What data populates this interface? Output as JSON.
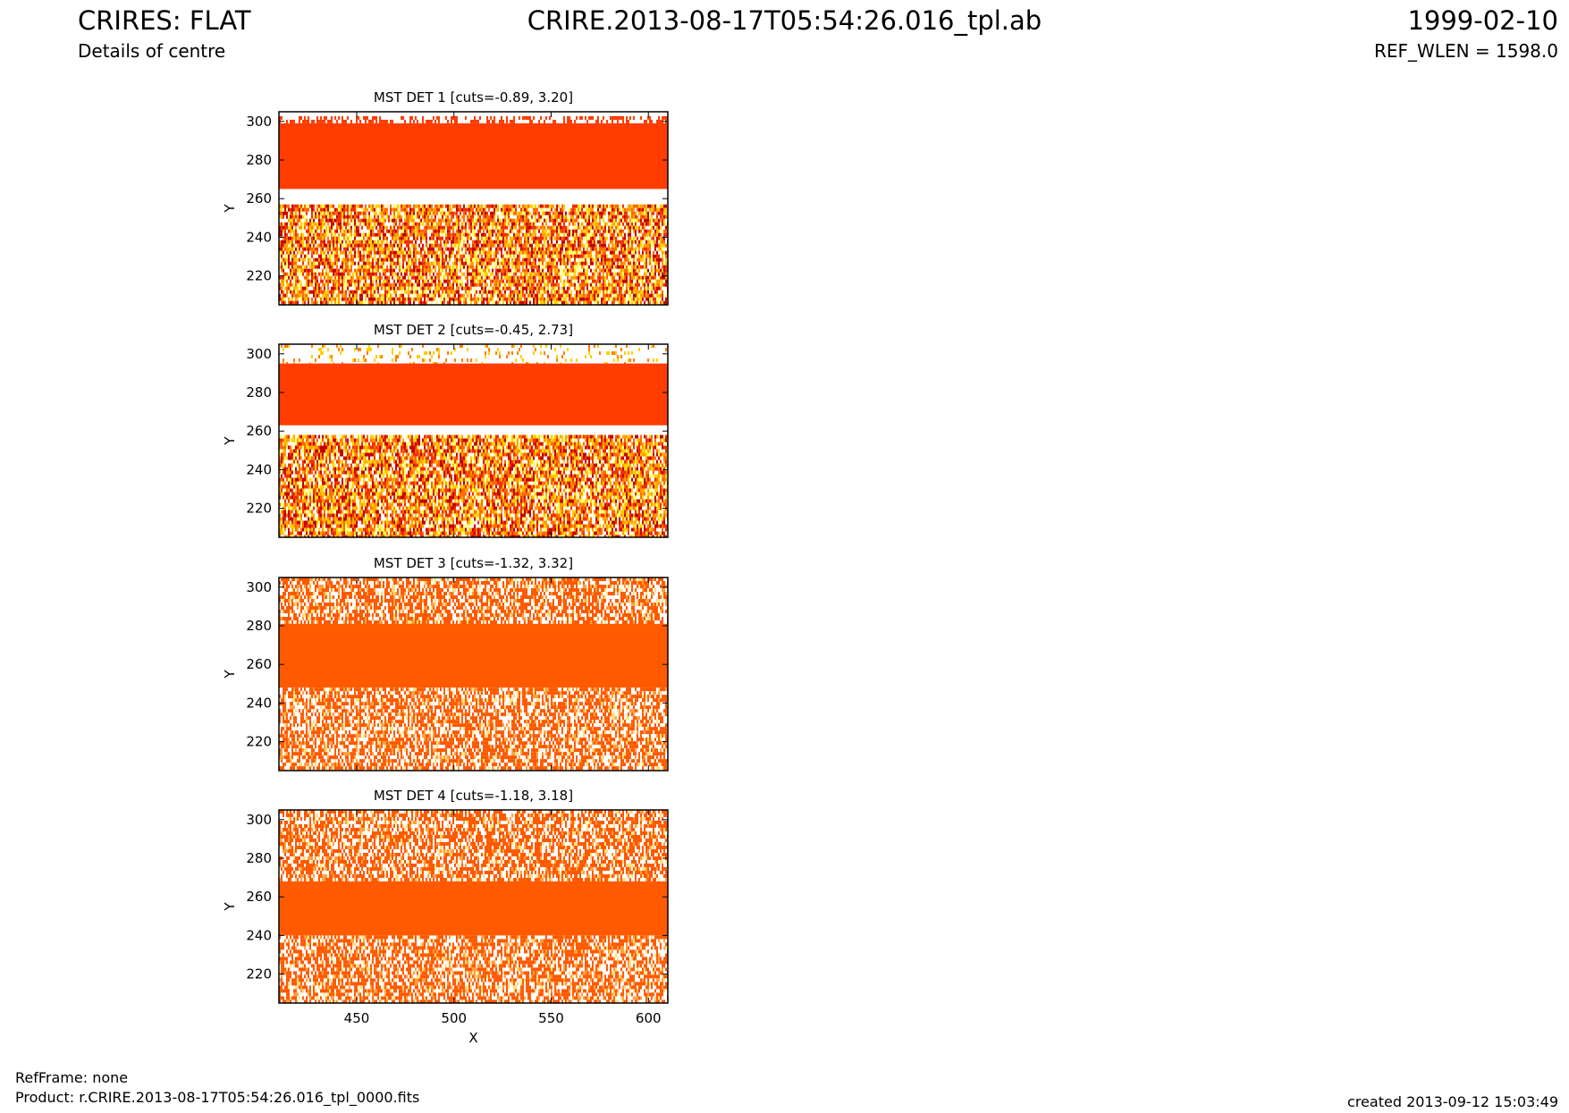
{
  "header": {
    "title": "CRIRES: FLAT",
    "subtitle": "Details of centre",
    "filename": "CRIRE.2013-08-17T05:54:26.016_tpl.ab",
    "date": "1999-02-10",
    "ref_wlen": "REF_WLEN = 1598.0"
  },
  "footer": {
    "refframe": "RefFrame: none",
    "product": "Product: r.CRIRE.2013-08-17T05:54:26.016_tpl_0000.fits",
    "created": "created 2013-09-12 15:03:49"
  },
  "colors": {
    "band_dark": "#ff3d00",
    "band_light": "#ff5a00",
    "noise": [
      "#ffffff",
      "#ffff80",
      "#ffe000",
      "#ffb000",
      "#ff8000",
      "#ff5000",
      "#e02000",
      "#c00000"
    ]
  },
  "chart_data": [
    {
      "type": "heatmap",
      "title": "MST DET 1 [cuts=-0.89, 3.20]",
      "xlabel": "",
      "ylabel": "Y",
      "xlim": [
        410,
        610
      ],
      "ylim": [
        205,
        305
      ],
      "xticks": [
        450,
        500,
        550,
        600
      ],
      "yticks": [
        220,
        240,
        260,
        280,
        300
      ],
      "band": [
        265,
        299
      ],
      "gap": [
        257,
        265
      ],
      "above": "scatter",
      "band_color": "#ff3d00",
      "noise": "hot"
    },
    {
      "type": "heatmap",
      "title": "MST DET 2 [cuts=-0.45, 2.73]",
      "xlabel": "",
      "ylabel": "Y",
      "xlim": [
        410,
        610
      ],
      "ylim": [
        205,
        305
      ],
      "xticks": [
        450,
        500,
        550,
        600
      ],
      "yticks": [
        220,
        240,
        260,
        280,
        300
      ],
      "band": [
        263,
        295
      ],
      "gap": [
        258,
        263
      ],
      "above": "sparse",
      "band_color": "#ff3d00",
      "noise": "hot"
    },
    {
      "type": "heatmap",
      "title": "MST DET 3 [cuts=-1.32, 3.32]",
      "xlabel": "",
      "ylabel": "Y",
      "xlim": [
        410,
        610
      ],
      "ylim": [
        205,
        305
      ],
      "xticks": [
        450,
        500,
        550,
        600
      ],
      "yticks": [
        220,
        240,
        260,
        280,
        300
      ],
      "band": [
        248,
        281
      ],
      "gap": [
        248,
        248
      ],
      "above": "noise",
      "band_color": "#ff5a00",
      "noise": "orange"
    },
    {
      "type": "heatmap",
      "title": "MST DET 4 [cuts=-1.18, 3.18]",
      "xlabel": "X",
      "ylabel": "Y",
      "xlim": [
        410,
        610
      ],
      "ylim": [
        205,
        305
      ],
      "xticks": [
        450,
        500,
        550,
        600
      ],
      "yticks": [
        220,
        240,
        260,
        280,
        300
      ],
      "band": [
        240,
        268
      ],
      "gap": [
        240,
        240
      ],
      "above": "noise",
      "band_color": "#ff5a00",
      "noise": "orange"
    }
  ]
}
